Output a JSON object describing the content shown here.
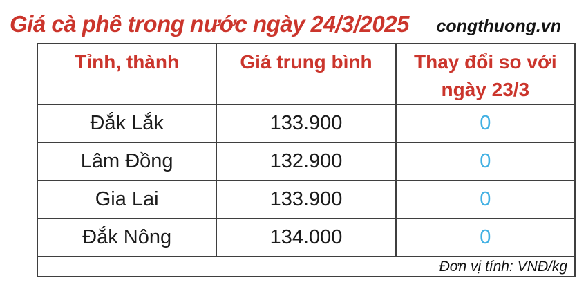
{
  "header": {
    "title": "Giá cà phê trong nước ngày 24/3/2025",
    "source": "congthuong.vn"
  },
  "colors": {
    "accent_red": "#cb352c",
    "change_blue": "#41b0e3",
    "border": "#3f3f3f",
    "text": "#1c1c1c"
  },
  "table": {
    "columns": [
      "Tỉnh, thành",
      "Giá trung bình",
      "Thay đổi so với ngày 23/3"
    ],
    "rows": [
      {
        "province": "Đắk Lắk",
        "avg_price": "133.900",
        "change": "0"
      },
      {
        "province": "Lâm Đồng",
        "avg_price": "132.900",
        "change": "0"
      },
      {
        "province": "Gia Lai",
        "avg_price": "133.900",
        "change": "0"
      },
      {
        "province": "Đắk Nông",
        "avg_price": "134.000",
        "change": "0"
      }
    ],
    "footer_note": "Đơn vị tính: VNĐ/kg"
  },
  "chart_data": {
    "type": "table",
    "title": "Giá cà phê trong nước ngày 24/3/2025",
    "source": "congthuong.vn",
    "unit": "VNĐ/kg",
    "columns": [
      "Tỉnh, thành",
      "Giá trung bình",
      "Thay đổi so với ngày 23/3"
    ],
    "rows": [
      [
        "Đắk Lắk",
        133900,
        0
      ],
      [
        "Lâm Đồng",
        132900,
        0
      ],
      [
        "Gia Lai",
        133900,
        0
      ],
      [
        "Đắk Nông",
        134000,
        0
      ]
    ]
  }
}
